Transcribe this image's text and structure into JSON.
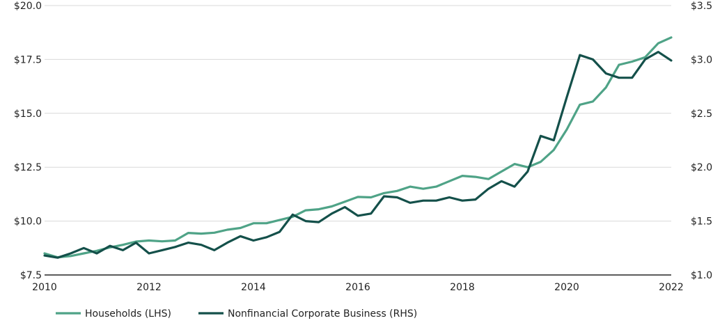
{
  "chart_data": {
    "type": "line",
    "title": "",
    "xlabel": "",
    "ylabel": "",
    "x_ticks": [
      "2010",
      "2012",
      "2014",
      "2016",
      "2018",
      "2020",
      "2022"
    ],
    "x_range": [
      2010,
      2022
    ],
    "y_left_ticks": [
      "$7.5",
      "$10.0",
      "$12.5",
      "$15.0",
      "$17.5",
      "$20.0"
    ],
    "y_left_range": [
      7.5,
      20.0
    ],
    "y_right_ticks": [
      "$1.0",
      "$1.5",
      "$2.0",
      "$2.5",
      "$3.0",
      "$3.5"
    ],
    "y_right_range": [
      1.0,
      3.5
    ],
    "grid": true,
    "legend_position": "bottom-left",
    "x": [
      2010.0,
      2010.25,
      2010.5,
      2010.75,
      2011.0,
      2011.25,
      2011.5,
      2011.75,
      2012.0,
      2012.25,
      2012.5,
      2012.75,
      2013.0,
      2013.25,
      2013.5,
      2013.75,
      2014.0,
      2014.25,
      2014.5,
      2014.75,
      2015.0,
      2015.25,
      2015.5,
      2015.75,
      2016.0,
      2016.25,
      2016.5,
      2016.75,
      2017.0,
      2017.25,
      2017.5,
      2017.75,
      2018.0,
      2018.25,
      2018.5,
      2018.75,
      2019.0,
      2019.25,
      2019.5,
      2019.75,
      2020.0,
      2020.25,
      2020.5,
      2020.75,
      2021.0,
      2021.25,
      2021.5,
      2021.75,
      2022.0
    ],
    "series": [
      {
        "name": "Households (LHS)",
        "axis": "left",
        "color": "#4fa387",
        "values": [
          8.5,
          8.32,
          8.38,
          8.5,
          8.62,
          8.78,
          8.9,
          9.05,
          9.1,
          9.06,
          9.1,
          9.45,
          9.42,
          9.46,
          9.6,
          9.68,
          9.9,
          9.9,
          10.05,
          10.2,
          10.5,
          10.55,
          10.68,
          10.9,
          11.12,
          11.1,
          11.3,
          11.4,
          11.6,
          11.5,
          11.6,
          11.85,
          12.1,
          12.05,
          11.95,
          12.3,
          12.65,
          12.5,
          12.75,
          13.3,
          14.25,
          15.4,
          15.55,
          16.2,
          17.25,
          17.4,
          17.6,
          18.25,
          18.52
        ]
      },
      {
        "name": "Nonfinancial Corporate Business (RHS)",
        "axis": "right",
        "color": "#14504a",
        "values": [
          1.18,
          1.16,
          1.2,
          1.25,
          1.2,
          1.27,
          1.23,
          1.3,
          1.2,
          1.23,
          1.26,
          1.3,
          1.28,
          1.23,
          1.3,
          1.36,
          1.32,
          1.35,
          1.4,
          1.56,
          1.5,
          1.49,
          1.57,
          1.63,
          1.55,
          1.57,
          1.73,
          1.72,
          1.67,
          1.69,
          1.69,
          1.72,
          1.69,
          1.7,
          1.8,
          1.87,
          1.82,
          1.96,
          2.29,
          2.25,
          2.65,
          3.04,
          3.0,
          2.87,
          2.83,
          2.83,
          3.0,
          3.07,
          2.99
        ]
      }
    ]
  }
}
